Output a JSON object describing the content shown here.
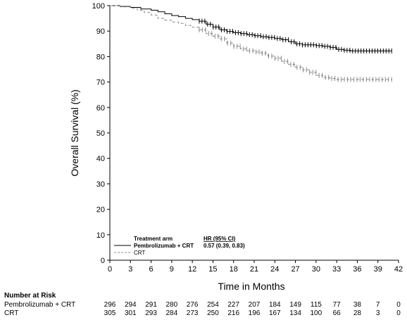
{
  "chart_data": {
    "type": "line",
    "title": "",
    "xlabel": "Time in Months",
    "ylabel": "Overall Survival (%)",
    "xlim": [
      0,
      42
    ],
    "ylim": [
      0,
      100
    ],
    "x_ticks": [
      "0",
      "3",
      "6",
      "9",
      "12",
      "15",
      "18",
      "21",
      "24",
      "27",
      "30",
      "33",
      "36",
      "39",
      "42"
    ],
    "y_ticks": [
      "0",
      "10",
      "20",
      "30",
      "40",
      "50",
      "60",
      "70",
      "80",
      "90",
      "100"
    ],
    "grid": false,
    "legend": {
      "title": "Treatment arm",
      "hr_header": "HR (95% CI)",
      "hr_value": "0.57 (0.39, 0.83)",
      "placement": "bottom-left"
    },
    "series": [
      {
        "name": "Pembrolizumab + CRT",
        "color": "#000000",
        "style": "solid",
        "points": [
          [
            0,
            100
          ],
          [
            1.5,
            99.7
          ],
          [
            3,
            99.3
          ],
          [
            4.5,
            98.7
          ],
          [
            6,
            98.2
          ],
          [
            7,
            97.6
          ],
          [
            8,
            96.8
          ],
          [
            9,
            96.1
          ],
          [
            10,
            95.7
          ],
          [
            11,
            95.0
          ],
          [
            12,
            94.5
          ],
          [
            13,
            93.9
          ],
          [
            14,
            92.7
          ],
          [
            15,
            91.6
          ],
          [
            16,
            90.5
          ],
          [
            17,
            89.9
          ],
          [
            18,
            89.4
          ],
          [
            19,
            89.0
          ],
          [
            20,
            88.6
          ],
          [
            21,
            88.2
          ],
          [
            22,
            87.8
          ],
          [
            23,
            87.5
          ],
          [
            24,
            87.1
          ],
          [
            25,
            86.6
          ],
          [
            26,
            85.8
          ],
          [
            27,
            85.0
          ],
          [
            28,
            84.6
          ],
          [
            30,
            84.3
          ],
          [
            31,
            84.0
          ],
          [
            32,
            83.6
          ],
          [
            33,
            82.8
          ],
          [
            34,
            82.5
          ],
          [
            35,
            82.2
          ],
          [
            37,
            82.2
          ],
          [
            39,
            82.2
          ],
          [
            41,
            82.2
          ]
        ]
      },
      {
        "name": "CRT",
        "color": "#888888",
        "style": "dashed",
        "points": [
          [
            0,
            100
          ],
          [
            1.5,
            99.5
          ],
          [
            3,
            99.0
          ],
          [
            4,
            98.2
          ],
          [
            5,
            97.3
          ],
          [
            6,
            96.3
          ],
          [
            7,
            95.0
          ],
          [
            8,
            94.3
          ],
          [
            9,
            93.6
          ],
          [
            10,
            93.0
          ],
          [
            11,
            92.2
          ],
          [
            12,
            91.5
          ],
          [
            13,
            90.5
          ],
          [
            14,
            89.0
          ],
          [
            15,
            88.0
          ],
          [
            16,
            87.0
          ],
          [
            17,
            85.3
          ],
          [
            18,
            84.0
          ],
          [
            19,
            83.0
          ],
          [
            20,
            82.3
          ],
          [
            21,
            81.8
          ],
          [
            22,
            81.3
          ],
          [
            23,
            80.2
          ],
          [
            24,
            79.3
          ],
          [
            25,
            78.1
          ],
          [
            26,
            76.9
          ],
          [
            27,
            75.8
          ],
          [
            28,
            74.8
          ],
          [
            29,
            73.8
          ],
          [
            30,
            72.6
          ],
          [
            31,
            71.8
          ],
          [
            32,
            71.4
          ],
          [
            33,
            71.0
          ],
          [
            34,
            71.0
          ],
          [
            36,
            71.0
          ],
          [
            38,
            71.0
          ],
          [
            40,
            71.0
          ],
          [
            41,
            71.0
          ]
        ]
      }
    ],
    "censor_ranges": [
      {
        "series": "Pembrolizumab + CRT",
        "x_from": 13,
        "x_to": 41,
        "count": 70
      },
      {
        "series": "CRT",
        "x_from": 13,
        "x_to": 41,
        "count": 62
      }
    ],
    "risk_table": {
      "title": "Number at Risk",
      "rows": [
        {
          "label": "Pembrolizumab + CRT",
          "values": [
            "296",
            "294",
            "291",
            "280",
            "276",
            "254",
            "227",
            "207",
            "184",
            "149",
            "115",
            "77",
            "38",
            "7",
            "0"
          ]
        },
        {
          "label": "CRT",
          "values": [
            "305",
            "301",
            "293",
            "284",
            "273",
            "250",
            "216",
            "196",
            "167",
            "134",
            "100",
            "66",
            "28",
            "3",
            "0"
          ]
        }
      ]
    }
  }
}
